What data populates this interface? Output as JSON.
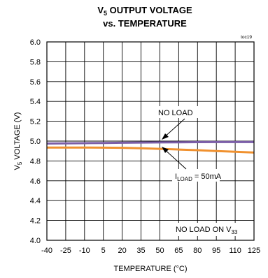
{
  "chart_data": {
    "type": "line",
    "title": {
      "line1": {
        "prefix": "V",
        "sub": "5",
        "suffix": " OUTPUT VOLTAGE"
      },
      "line2": "vs. TEMPERATURE"
    },
    "code": "toc19",
    "xlabel": "TEMPERATURE (°C)",
    "ylabel": {
      "prefix": "V",
      "sub": "5",
      "suffix": " VOLTAGE (V)"
    },
    "xlim": [
      -40,
      125
    ],
    "ylim": [
      4.0,
      6.0
    ],
    "xticks": [
      -40,
      -25,
      -10,
      5,
      20,
      35,
      50,
      65,
      80,
      95,
      110,
      125
    ],
    "xtick_labels": [
      "-40",
      "-25",
      "-10",
      "5",
      "20",
      "35",
      "50",
      "65",
      "80",
      "95",
      "110",
      "125"
    ],
    "yticks": [
      4.0,
      4.2,
      4.4,
      4.6,
      4.8,
      5.0,
      5.2,
      5.4,
      5.6,
      5.8,
      6.0
    ],
    "ytick_labels": [
      "4.0",
      "4.2",
      "4.4",
      "4.6",
      "4.8",
      "5.0",
      "5.2",
      "5.4",
      "5.6",
      "5.8",
      "6.0"
    ],
    "grid": true,
    "series": [
      {
        "color": "#7b5ea7",
        "x": [
          -40,
          -25,
          -10,
          5,
          20,
          35,
          50,
          65,
          80,
          95,
          110,
          125
        ],
        "y": [
          4.975,
          4.977,
          4.979,
          4.981,
          4.983,
          4.985,
          4.987,
          4.988,
          4.989,
          4.99,
          4.99,
          4.99
        ]
      },
      {
        "color": "#f0912f",
        "x": [
          -40,
          -25,
          -10,
          5,
          20,
          35,
          50,
          65,
          80,
          95,
          110,
          125
        ],
        "y": [
          4.935,
          4.935,
          4.935,
          4.934,
          4.932,
          4.928,
          4.922,
          4.915,
          4.908,
          4.9,
          4.893,
          4.885
        ]
      }
    ],
    "annotations": [
      {
        "text": "NO LOAD"
      },
      {
        "prefix": "I",
        "sub": "LOAD",
        "suffix": " = 50mA"
      },
      {
        "prefix": "NO LOAD ON V",
        "sub": "33",
        "suffix": ""
      }
    ]
  }
}
